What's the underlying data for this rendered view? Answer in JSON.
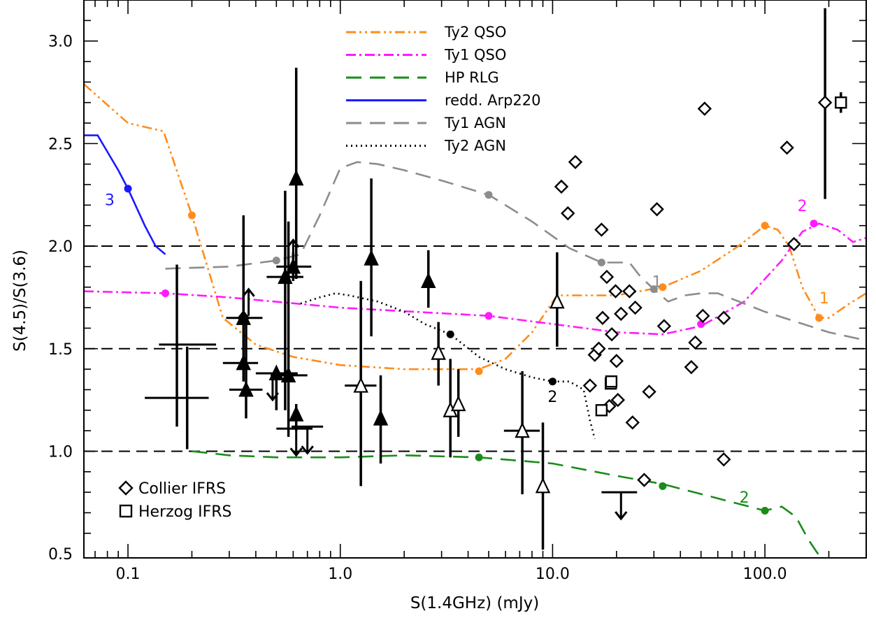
{
  "chart_data": {
    "type": "scatter",
    "xlabel": "S(1.4GHz) (mJy)",
    "ylabel": "S(4.5)/S(3.6)",
    "xscale": "log",
    "xlim": [
      0.062,
      300
    ],
    "ylim": [
      0.48,
      3.2
    ],
    "xticks": [
      {
        "v": 0.1,
        "label": "0.1"
      },
      {
        "v": 1,
        "label": "1.0"
      },
      {
        "v": 10,
        "label": "10.0"
      },
      {
        "v": 100,
        "label": "100.0"
      }
    ],
    "yticks": [
      {
        "v": 0.5,
        "label": "0.5"
      },
      {
        "v": 1.0,
        "label": "1.0"
      },
      {
        "v": 1.5,
        "label": "1.5"
      },
      {
        "v": 2.0,
        "label": "2.0"
      },
      {
        "v": 2.5,
        "label": "2.5"
      },
      {
        "v": 3.0,
        "label": "3.0"
      }
    ],
    "hlines": [
      1.0,
      1.5,
      2.0
    ],
    "grid": false,
    "legend_position": "top-center",
    "colors": {
      "ty2qso": "#ff8c1a",
      "ty1qso": "#ff1aff",
      "hprlg": "#1a8c1a",
      "arp220": "#1a1aff",
      "ty1agn": "#8c8c8c",
      "ty2agn": "#000000"
    },
    "series": [
      {
        "name": "Ty2 QSO",
        "key": "ty2qso",
        "style": "dashdotdot",
        "x": [
          0.062,
          0.1,
          0.147,
          0.2,
          0.28,
          0.4,
          0.6,
          1.0,
          2.0,
          4.5,
          6.0,
          8.0,
          10.5,
          15.0,
          20.0,
          33.0,
          50.0,
          75.0,
          100.0,
          115.0,
          130.0,
          150.0,
          180.0,
          200.0,
          250.0,
          300.0
        ],
        "y": [
          2.79,
          2.6,
          2.56,
          2.15,
          1.65,
          1.52,
          1.46,
          1.42,
          1.4,
          1.4,
          1.45,
          1.58,
          1.76,
          1.76,
          1.76,
          1.8,
          1.88,
          2.0,
          2.1,
          2.08,
          2.0,
          1.8,
          1.65,
          1.65,
          1.72,
          1.77
        ]
      },
      {
        "name": "Ty1 QSO",
        "key": "ty1qso",
        "style": "dashdot",
        "x": [
          0.062,
          0.15,
          0.3,
          1.0,
          5.0,
          10.0,
          20.0,
          33.0,
          50.0,
          80.0,
          120.0,
          150.0,
          180.0,
          220.0,
          260.0,
          300.0
        ],
        "y": [
          1.78,
          1.77,
          1.75,
          1.7,
          1.66,
          1.62,
          1.58,
          1.57,
          1.61,
          1.73,
          1.93,
          2.07,
          2.11,
          2.08,
          2.02,
          2.04
        ]
      },
      {
        "name": "HP RLG",
        "key": "hprlg",
        "style": "longdash",
        "x": [
          0.2,
          0.3,
          0.5,
          1.0,
          2.0,
          4.5,
          10.0,
          20.0,
          33.0,
          60.0,
          100.0,
          120.0,
          140.0,
          160.0,
          175.0,
          190.0
        ],
        "y": [
          1.0,
          0.98,
          0.97,
          0.97,
          0.98,
          0.97,
          0.94,
          0.88,
          0.84,
          0.77,
          0.71,
          0.73,
          0.68,
          0.57,
          0.51,
          0.46
        ]
      },
      {
        "name": "redd. Arp220",
        "key": "arp220",
        "style": "solid",
        "x": [
          0.062,
          0.072,
          0.08,
          0.09,
          0.1,
          0.12,
          0.135,
          0.15
        ],
        "y": [
          2.54,
          2.54,
          2.46,
          2.37,
          2.28,
          2.1,
          2.0,
          1.96
        ]
      },
      {
        "name": "Ty1 AGN",
        "key": "ty1agn",
        "style": "longdash",
        "x": [
          0.15,
          0.3,
          0.5,
          0.65,
          0.8,
          1.0,
          1.2,
          1.5,
          2.0,
          3.0,
          5.0,
          8.0,
          12.0,
          17.0,
          23.0,
          26.0,
          30.0,
          35.0,
          42.0,
          50.0,
          60.0,
          100.0,
          200.0,
          300.0
        ],
        "y": [
          1.89,
          1.9,
          1.93,
          1.96,
          2.15,
          2.38,
          2.41,
          2.4,
          2.37,
          2.32,
          2.25,
          2.12,
          1.99,
          1.92,
          1.92,
          1.85,
          1.79,
          1.73,
          1.76,
          1.77,
          1.77,
          1.68,
          1.58,
          1.54
        ]
      },
      {
        "name": "Ty2 AGN",
        "key": "ty2agn",
        "style": "dotted",
        "x": [
          0.65,
          0.8,
          0.95,
          1.1,
          1.5,
          2.0,
          2.5,
          3.3,
          4.5,
          6.0,
          8.0,
          10.0,
          12.0,
          14.0,
          15.0,
          15.8
        ],
        "y": [
          1.72,
          1.75,
          1.77,
          1.76,
          1.73,
          1.68,
          1.62,
          1.57,
          1.46,
          1.4,
          1.36,
          1.34,
          1.34,
          1.3,
          1.15,
          1.06
        ]
      }
    ],
    "redshift_markers": [
      {
        "key": "ty2qso",
        "x": 0.2,
        "y": 2.15
      },
      {
        "key": "ty2qso",
        "x": 4.5,
        "y": 1.39
      },
      {
        "key": "ty2qso",
        "x": 33.0,
        "y": 1.8
      },
      {
        "key": "ty2qso",
        "x": 100.0,
        "y": 2.1
      },
      {
        "key": "ty2qso",
        "x": 180.0,
        "y": 1.65
      },
      {
        "key": "ty1qso",
        "x": 0.15,
        "y": 1.77
      },
      {
        "key": "ty1qso",
        "x": 5.0,
        "y": 1.66
      },
      {
        "key": "ty1qso",
        "x": 50.0,
        "y": 1.62
      },
      {
        "key": "ty1qso",
        "x": 170.0,
        "y": 2.11
      },
      {
        "key": "hprlg",
        "x": 4.5,
        "y": 0.97
      },
      {
        "key": "hprlg",
        "x": 33.0,
        "y": 0.83
      },
      {
        "key": "hprlg",
        "x": 100.0,
        "y": 0.71
      },
      {
        "key": "arp220",
        "x": 0.1,
        "y": 2.28
      },
      {
        "key": "ty1agn",
        "x": 0.5,
        "y": 1.93
      },
      {
        "key": "ty1agn",
        "x": 5.0,
        "y": 2.25
      },
      {
        "key": "ty1agn",
        "x": 17.0,
        "y": 1.92
      },
      {
        "key": "ty1agn",
        "x": 30.0,
        "y": 1.79
      },
      {
        "key": "ty2agn",
        "x": 3.3,
        "y": 1.57
      },
      {
        "key": "ty2agn",
        "x": 10.0,
        "y": 1.34
      }
    ],
    "curve_labels": [
      {
        "key": "arp220",
        "text": "3",
        "x": 0.082,
        "y": 2.2
      },
      {
        "key": "ty2agn",
        "text": "2",
        "x": 10.0,
        "y": 1.24
      },
      {
        "key": "ty1agn",
        "text": "1",
        "x": 31.0,
        "y": 1.8
      },
      {
        "key": "ty1qso",
        "text": "2",
        "x": 150.0,
        "y": 2.17
      },
      {
        "key": "ty2qso",
        "text": "1",
        "x": 190.0,
        "y": 1.72
      },
      {
        "key": "hprlg",
        "text": "2",
        "x": 80.0,
        "y": 0.75
      }
    ],
    "filled_triangles": [
      {
        "x": 0.35,
        "y": 1.65,
        "ylo": 1.5,
        "yhi": 2.15,
        "xlo": 0.29,
        "xhi": 0.43
      },
      {
        "x": 0.35,
        "y": 1.43,
        "ylo": 1.34,
        "yhi": 1.77,
        "xlo": 0.28,
        "xhi": 0.41
      },
      {
        "x": 0.36,
        "y": 1.3,
        "ylo": 1.16,
        "yhi": 1.65,
        "xlo": 0.3,
        "xhi": 0.43
      },
      {
        "x": 0.5,
        "y": 1.38,
        "ylo": 1.2,
        "yhi": 1.4,
        "xlo": 0.42,
        "xhi": 0.63
      },
      {
        "x": 0.55,
        "y": 1.85,
        "ylo": 1.2,
        "yhi": 2.27,
        "xlo": 0.45,
        "xhi": 0.67
      },
      {
        "x": 0.57,
        "y": 1.37,
        "ylo": 1.07,
        "yhi": 2.12,
        "xlo": 0.47,
        "xhi": 0.7
      },
      {
        "x": 0.6,
        "y": 1.9,
        "ylo": 1.83,
        "yhi": 1.97,
        "xlo": 0.5,
        "xhi": 0.73
      },
      {
        "x": 0.62,
        "y": 2.33,
        "ylo": 1.84,
        "yhi": 2.87,
        "xlo": 0.62,
        "xhi": 0.62
      },
      {
        "x": 0.62,
        "y": 1.18,
        "ylo": 1.1,
        "yhi": 1.23,
        "xlo": 0.62,
        "xhi": 0.62
      },
      {
        "x": 1.4,
        "y": 1.94,
        "ylo": 1.56,
        "yhi": 2.33,
        "xlo": 1.4,
        "xhi": 1.4
      },
      {
        "x": 1.55,
        "y": 1.16,
        "ylo": 0.94,
        "yhi": 1.37,
        "xlo": 1.55,
        "xhi": 1.55
      },
      {
        "x": 2.6,
        "y": 1.83,
        "ylo": 1.7,
        "yhi": 1.98,
        "xlo": 2.6,
        "xhi": 2.6
      }
    ],
    "open_triangles": [
      {
        "x": 1.25,
        "y": 1.32,
        "ylo": 0.83,
        "yhi": 1.83,
        "xlo": 1.05,
        "xhi": 1.48
      },
      {
        "x": 2.9,
        "y": 1.48,
        "ylo": 1.32,
        "yhi": 1.63,
        "xlo": 2.9,
        "xhi": 2.9
      },
      {
        "x": 3.3,
        "y": 1.2,
        "ylo": 0.97,
        "yhi": 1.45,
        "xlo": 3.3,
        "xhi": 3.3
      },
      {
        "x": 3.6,
        "y": 1.23,
        "ylo": 1.07,
        "yhi": 1.4,
        "xlo": 3.6,
        "xhi": 3.6
      },
      {
        "x": 7.2,
        "y": 1.1,
        "ylo": 0.79,
        "yhi": 1.39,
        "xlo": 5.9,
        "xhi": 8.7
      },
      {
        "x": 9.0,
        "y": 0.83,
        "ylo": 0.52,
        "yhi": 1.14,
        "xlo": 9.0,
        "xhi": 9.0
      },
      {
        "x": 10.5,
        "y": 1.73,
        "ylo": 1.51,
        "yhi": 1.97,
        "xlo": 10.5,
        "xhi": 10.5
      }
    ],
    "upper_limits": [
      {
        "x": 0.48,
        "y": 1.38,
        "xlo": 0.4,
        "xhi": 0.57
      },
      {
        "x": 0.62,
        "y": 1.11,
        "xlo": 0.5,
        "xhi": 0.74
      },
      {
        "x": 0.7,
        "y": 1.12,
        "xlo": 0.59,
        "xhi": 0.83
      },
      {
        "x": 21.0,
        "y": 0.8,
        "xlo": 17.0,
        "xhi": 25.0
      }
    ],
    "lower_limits": [
      {
        "x": 0.35,
        "y": 1.55
      },
      {
        "x": 0.37,
        "y": 1.66
      },
      {
        "x": 0.6,
        "y": 1.9
      }
    ],
    "errorbar_crosses": [
      {
        "x": 0.17,
        "y": 1.26,
        "ylo": 1.12,
        "yhi": 1.91,
        "xlo": 0.12,
        "xhi": 0.24
      },
      {
        "x": 0.19,
        "y": 1.52,
        "ylo": 1.01,
        "yhi": 1.51,
        "xlo": 0.14,
        "xhi": 0.26
      }
    ],
    "collier_ifrs": [
      {
        "x": 11.0,
        "y": 2.29
      },
      {
        "x": 11.8,
        "y": 2.16
      },
      {
        "x": 12.8,
        "y": 2.41
      },
      {
        "x": 15.0,
        "y": 1.32
      },
      {
        "x": 15.8,
        "y": 1.47
      },
      {
        "x": 16.5,
        "y": 1.5
      },
      {
        "x": 17.0,
        "y": 2.08
      },
      {
        "x": 17.2,
        "y": 1.65
      },
      {
        "x": 18.0,
        "y": 1.85
      },
      {
        "x": 18.5,
        "y": 1.22
      },
      {
        "x": 19.0,
        "y": 1.57
      },
      {
        "x": 19.8,
        "y": 1.78
      },
      {
        "x": 20.0,
        "y": 1.44
      },
      {
        "x": 20.3,
        "y": 1.25
      },
      {
        "x": 21.0,
        "y": 1.67
      },
      {
        "x": 23.0,
        "y": 1.78
      },
      {
        "x": 23.8,
        "y": 1.14
      },
      {
        "x": 24.5,
        "y": 1.7
      },
      {
        "x": 27.0,
        "y": 0.86
      },
      {
        "x": 28.5,
        "y": 1.29
      },
      {
        "x": 31.0,
        "y": 2.18
      },
      {
        "x": 33.5,
        "y": 1.61
      },
      {
        "x": 45.0,
        "y": 1.41
      },
      {
        "x": 47.0,
        "y": 1.53
      },
      {
        "x": 51.0,
        "y": 1.66
      },
      {
        "x": 52.0,
        "y": 2.67
      },
      {
        "x": 64.0,
        "y": 1.65
      },
      {
        "x": 64.0,
        "y": 0.96
      },
      {
        "x": 127.0,
        "y": 2.48
      },
      {
        "x": 137.0,
        "y": 2.01
      },
      {
        "x": 192.0,
        "y": 2.7,
        "ylo": 2.23,
        "yhi": 3.16
      }
    ],
    "herzog_ifrs": [
      {
        "x": 17.0,
        "y": 1.2
      },
      {
        "x": 18.8,
        "y": 1.33
      },
      {
        "x": 18.9,
        "y": 1.34
      },
      {
        "x": 228.0,
        "y": 2.7,
        "ylo": 2.65,
        "yhi": 2.75
      }
    ],
    "marker_legend": [
      {
        "marker": "diamond",
        "label": "Collier IFRS"
      },
      {
        "marker": "square",
        "label": "Herzog IFRS"
      }
    ]
  }
}
